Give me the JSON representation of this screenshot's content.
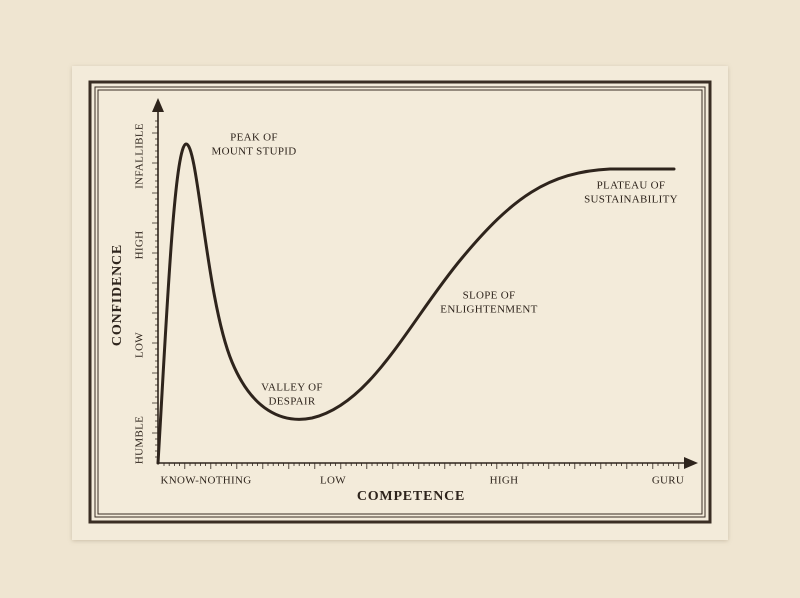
{
  "diagram": {
    "y_axis": {
      "title": "CONFIDENCE",
      "labels": [
        "HUMBLE",
        "LOW",
        "HIGH",
        "INFALLIBLE"
      ]
    },
    "x_axis": {
      "title": "COMPETENCE",
      "labels": [
        "KNOW-NOTHING",
        "LOW",
        "HIGH",
        "GURU"
      ]
    },
    "annotations": [
      {
        "lines": [
          "PEAK OF",
          "MOUNT STUPID"
        ]
      },
      {
        "lines": [
          "VALLEY OF",
          "DESPAIR"
        ]
      },
      {
        "lines": [
          "SLOPE OF",
          "ENLIGHTENMENT"
        ]
      },
      {
        "lines": [
          "PLATEAU OF",
          "SUSTAINABILITY"
        ]
      }
    ]
  }
}
